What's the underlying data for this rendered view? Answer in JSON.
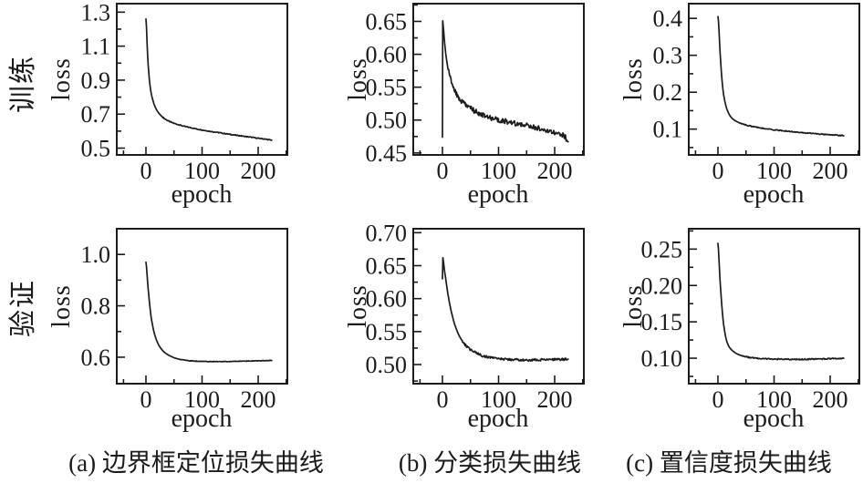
{
  "figure": {
    "row_labels": [
      {
        "label": "训练"
      },
      {
        "label": "验证"
      }
    ],
    "ylabel": "loss",
    "xlabel": "epoch",
    "captions": [
      "(a) 边界框定位损失曲线",
      "(b) 分类损失曲线",
      "(c) 置信度损失曲线"
    ],
    "line_color": "#1c1c1c",
    "background": "#ffffff"
  },
  "chart_data": [
    {
      "type": "line",
      "row": 0,
      "col": 0,
      "row_label": "训练",
      "caption": "(a) 边界框定位损失曲线",
      "xlabel": "epoch",
      "ylabel": "loss",
      "xlim": [
        -52,
        252
      ],
      "x_ticks": [
        0,
        100,
        200
      ],
      "x_tick_labels": [
        "0",
        "100",
        "200"
      ],
      "x_minor": [
        -40,
        50,
        150,
        250
      ],
      "ylim": [
        0.46,
        1.35
      ],
      "y_ticks": [
        0.5,
        0.7,
        0.9,
        1.1,
        1.3
      ],
      "y_tick_labels": [
        "0.5",
        "0.7",
        "0.9",
        "1.1",
        "1.3"
      ],
      "y_minor": [
        0.6,
        0.8,
        1.0,
        1.2
      ],
      "noise_amp": 0.0025,
      "noise_start": 30,
      "points": [
        [
          0,
          1.26
        ],
        [
          1,
          1.21
        ],
        [
          2,
          1.12
        ],
        [
          3,
          1.05
        ],
        [
          4,
          0.99
        ],
        [
          5,
          0.945
        ],
        [
          6,
          0.905
        ],
        [
          7,
          0.875
        ],
        [
          8,
          0.85
        ],
        [
          10,
          0.812
        ],
        [
          12,
          0.785
        ],
        [
          14,
          0.763
        ],
        [
          16,
          0.745
        ],
        [
          18,
          0.731
        ],
        [
          20,
          0.719
        ],
        [
          23,
          0.705
        ],
        [
          26,
          0.694
        ],
        [
          30,
          0.681
        ],
        [
          35,
          0.669
        ],
        [
          40,
          0.66
        ],
        [
          45,
          0.652
        ],
        [
          50,
          0.646
        ],
        [
          60,
          0.636
        ],
        [
          70,
          0.627
        ],
        [
          80,
          0.62
        ],
        [
          90,
          0.613
        ],
        [
          100,
          0.607
        ],
        [
          110,
          0.601
        ],
        [
          120,
          0.596
        ],
        [
          130,
          0.591
        ],
        [
          140,
          0.586
        ],
        [
          150,
          0.581
        ],
        [
          160,
          0.576
        ],
        [
          170,
          0.572
        ],
        [
          180,
          0.567
        ],
        [
          190,
          0.563
        ],
        [
          200,
          0.558
        ],
        [
          210,
          0.554
        ],
        [
          220,
          0.549
        ],
        [
          224,
          0.547
        ]
      ]
    },
    {
      "type": "line",
      "row": 0,
      "col": 1,
      "row_label": "训练",
      "caption": "(b) 分类损失曲线",
      "xlabel": "epoch",
      "ylabel": "loss",
      "xlim": [
        -52,
        252
      ],
      "x_ticks": [
        0,
        100,
        200
      ],
      "x_tick_labels": [
        "0",
        "100",
        "200"
      ],
      "x_minor": [
        -40,
        50,
        150,
        250
      ],
      "ylim": [
        0.447,
        0.677
      ],
      "y_ticks": [
        0.45,
        0.5,
        0.55,
        0.6,
        0.65
      ],
      "y_tick_labels": [
        "0.45",
        "0.50",
        "0.55",
        "0.60",
        "0.65"
      ],
      "y_minor": [
        0.475,
        0.525,
        0.575,
        0.625,
        0.675
      ],
      "noise_amp": 0.004,
      "noise_start": 10,
      "points": [
        [
          0,
          0.474
        ],
        [
          0.5,
          0.651
        ],
        [
          2,
          0.638
        ],
        [
          3,
          0.627
        ],
        [
          4,
          0.617
        ],
        [
          5,
          0.608
        ],
        [
          6,
          0.6
        ],
        [
          7,
          0.594
        ],
        [
          8,
          0.588
        ],
        [
          9,
          0.583
        ],
        [
          10,
          0.578
        ],
        [
          12,
          0.57
        ],
        [
          14,
          0.563
        ],
        [
          16,
          0.557
        ],
        [
          18,
          0.552
        ],
        [
          20,
          0.548
        ],
        [
          23,
          0.543
        ],
        [
          26,
          0.538
        ],
        [
          30,
          0.533
        ],
        [
          34,
          0.529
        ],
        [
          38,
          0.5255
        ],
        [
          42,
          0.5225
        ],
        [
          46,
          0.52
        ],
        [
          50,
          0.5175
        ],
        [
          55,
          0.515
        ],
        [
          60,
          0.5125
        ],
        [
          65,
          0.5105
        ],
        [
          70,
          0.5085
        ],
        [
          75,
          0.507
        ],
        [
          80,
          0.5055
        ],
        [
          85,
          0.504
        ],
        [
          90,
          0.5025
        ],
        [
          95,
          0.5015
        ],
        [
          100,
          0.5
        ],
        [
          110,
          0.4985
        ],
        [
          120,
          0.4965
        ],
        [
          130,
          0.495
        ],
        [
          140,
          0.4935
        ],
        [
          150,
          0.4915
        ],
        [
          160,
          0.49
        ],
        [
          170,
          0.488
        ],
        [
          180,
          0.486
        ],
        [
          190,
          0.4835
        ],
        [
          200,
          0.4815
        ],
        [
          210,
          0.479
        ],
        [
          218,
          0.4755
        ],
        [
          224,
          0.467
        ]
      ]
    },
    {
      "type": "line",
      "row": 0,
      "col": 2,
      "row_label": "训练",
      "caption": "(c) 置信度损失曲线",
      "xlabel": "epoch",
      "ylabel": "loss",
      "xlim": [
        -52,
        252
      ],
      "x_ticks": [
        0,
        100,
        200
      ],
      "x_tick_labels": [
        "0",
        "100",
        "200"
      ],
      "x_minor": [
        -40,
        50,
        150,
        250
      ],
      "ylim": [
        0.03,
        0.44
      ],
      "y_ticks": [
        0.1,
        0.2,
        0.3,
        0.4
      ],
      "y_tick_labels": [
        "0.1",
        "0.2",
        "0.3",
        "0.4"
      ],
      "y_minor": [
        0.05,
        0.15,
        0.25,
        0.35
      ],
      "noise_amp": 0.0012,
      "noise_start": 40,
      "points": [
        [
          0,
          0.405
        ],
        [
          1,
          0.392
        ],
        [
          2,
          0.365
        ],
        [
          3,
          0.335
        ],
        [
          4,
          0.305
        ],
        [
          5,
          0.278
        ],
        [
          6,
          0.256
        ],
        [
          7,
          0.237
        ],
        [
          8,
          0.221
        ],
        [
          9,
          0.207
        ],
        [
          10,
          0.195
        ],
        [
          11,
          0.185
        ],
        [
          12,
          0.177
        ],
        [
          14,
          0.164
        ],
        [
          16,
          0.154
        ],
        [
          18,
          0.146
        ],
        [
          20,
          0.14
        ],
        [
          23,
          0.133
        ],
        [
          26,
          0.128
        ],
        [
          30,
          0.1235
        ],
        [
          34,
          0.12
        ],
        [
          38,
          0.117
        ],
        [
          42,
          0.1145
        ],
        [
          46,
          0.1125
        ],
        [
          50,
          0.111
        ],
        [
          60,
          0.1075
        ],
        [
          70,
          0.1045
        ],
        [
          80,
          0.102
        ],
        [
          90,
          0.1
        ],
        [
          100,
          0.098
        ],
        [
          110,
          0.0965
        ],
        [
          120,
          0.095
        ],
        [
          130,
          0.0935
        ],
        [
          140,
          0.092
        ],
        [
          150,
          0.0905
        ],
        [
          160,
          0.089
        ],
        [
          170,
          0.0878
        ],
        [
          180,
          0.0866
        ],
        [
          190,
          0.0855
        ],
        [
          200,
          0.0845
        ],
        [
          210,
          0.0835
        ],
        [
          220,
          0.0826
        ],
        [
          224,
          0.0822
        ]
      ]
    },
    {
      "type": "line",
      "row": 1,
      "col": 0,
      "row_label": "验证",
      "caption": "(a) 边界框定位损失曲线",
      "xlabel": "epoch",
      "ylabel": "loss",
      "xlim": [
        -52,
        252
      ],
      "x_ticks": [
        0,
        100,
        200
      ],
      "x_tick_labels": [
        "0",
        "100",
        "200"
      ],
      "x_minor": [
        -40,
        50,
        150,
        250
      ],
      "ylim": [
        0.497,
        1.1
      ],
      "y_ticks": [
        0.6,
        0.8,
        1.0
      ],
      "y_tick_labels": [
        "0.6",
        "0.8",
        "1.0"
      ],
      "y_minor": [
        0.5,
        0.7,
        0.9,
        1.1
      ],
      "noise_amp": 0.001,
      "noise_start": 60,
      "points": [
        [
          0,
          0.97
        ],
        [
          1,
          0.952
        ],
        [
          2,
          0.922
        ],
        [
          3,
          0.893
        ],
        [
          4,
          0.866
        ],
        [
          5,
          0.841
        ],
        [
          6,
          0.818
        ],
        [
          7,
          0.797
        ],
        [
          8,
          0.778
        ],
        [
          9,
          0.761
        ],
        [
          10,
          0.746
        ],
        [
          12,
          0.721
        ],
        [
          14,
          0.701
        ],
        [
          16,
          0.685
        ],
        [
          18,
          0.671
        ],
        [
          20,
          0.66
        ],
        [
          23,
          0.646
        ],
        [
          26,
          0.636
        ],
        [
          30,
          0.625
        ],
        [
          34,
          0.617
        ],
        [
          38,
          0.611
        ],
        [
          42,
          0.606
        ],
        [
          46,
          0.602
        ],
        [
          50,
          0.598
        ],
        [
          55,
          0.5945
        ],
        [
          60,
          0.5915
        ],
        [
          70,
          0.588
        ],
        [
          80,
          0.5858
        ],
        [
          90,
          0.5845
        ],
        [
          100,
          0.5838
        ],
        [
          110,
          0.5833
        ],
        [
          120,
          0.583
        ],
        [
          130,
          0.583
        ],
        [
          140,
          0.5832
        ],
        [
          150,
          0.5835
        ],
        [
          160,
          0.584
        ],
        [
          170,
          0.5845
        ],
        [
          180,
          0.585
        ],
        [
          190,
          0.5855
        ],
        [
          200,
          0.586
        ],
        [
          210,
          0.5865
        ],
        [
          220,
          0.587
        ],
        [
          224,
          0.5872
        ]
      ]
    },
    {
      "type": "line",
      "row": 1,
      "col": 1,
      "row_label": "验证",
      "caption": "(b) 分类损失曲线",
      "xlabel": "epoch",
      "ylabel": "loss",
      "xlim": [
        -52,
        252
      ],
      "x_ticks": [
        0,
        100,
        200
      ],
      "x_tick_labels": [
        "0",
        "100",
        "200"
      ],
      "x_minor": [
        -40,
        50,
        150,
        250
      ],
      "ylim": [
        0.471,
        0.706
      ],
      "y_ticks": [
        0.5,
        0.55,
        0.6,
        0.65,
        0.7
      ],
      "y_tick_labels": [
        "0.50",
        "0.55",
        "0.60",
        "0.65",
        "0.70"
      ],
      "y_minor": [
        0.475,
        0.525,
        0.575,
        0.625,
        0.675
      ],
      "noise_amp": 0.0018,
      "noise_start": 35,
      "points": [
        [
          0,
          0.63
        ],
        [
          0.8,
          0.662
        ],
        [
          2,
          0.655
        ],
        [
          3,
          0.648
        ],
        [
          4,
          0.641
        ],
        [
          5,
          0.635
        ],
        [
          6,
          0.629
        ],
        [
          7,
          0.623
        ],
        [
          8,
          0.617
        ],
        [
          9,
          0.6115
        ],
        [
          10,
          0.606
        ],
        [
          12,
          0.596
        ],
        [
          14,
          0.5875
        ],
        [
          16,
          0.5795
        ],
        [
          18,
          0.5725
        ],
        [
          20,
          0.566
        ],
        [
          22,
          0.5605
        ],
        [
          24,
          0.5555
        ],
        [
          26,
          0.551
        ],
        [
          28,
          0.547
        ],
        [
          30,
          0.5435
        ],
        [
          33,
          0.539
        ],
        [
          36,
          0.535
        ],
        [
          39,
          0.5315
        ],
        [
          42,
          0.5285
        ],
        [
          45,
          0.526
        ],
        [
          48,
          0.524
        ],
        [
          52,
          0.5215
        ],
        [
          56,
          0.5195
        ],
        [
          60,
          0.5175
        ],
        [
          65,
          0.5155
        ],
        [
          70,
          0.514
        ],
        [
          75,
          0.5125
        ],
        [
          80,
          0.5115
        ],
        [
          85,
          0.5105
        ],
        [
          90,
          0.51
        ],
        [
          100,
          0.509
        ],
        [
          110,
          0.5082
        ],
        [
          120,
          0.5076
        ],
        [
          130,
          0.5072
        ],
        [
          140,
          0.507
        ],
        [
          150,
          0.5068
        ],
        [
          160,
          0.5068
        ],
        [
          170,
          0.507
        ],
        [
          180,
          0.5071
        ],
        [
          190,
          0.5073
        ],
        [
          200,
          0.5075
        ],
        [
          210,
          0.5078
        ],
        [
          220,
          0.508
        ],
        [
          224,
          0.5081
        ]
      ]
    },
    {
      "type": "line",
      "row": 1,
      "col": 2,
      "row_label": "验证",
      "caption": "(c) 置信度损失曲线",
      "xlabel": "epoch",
      "ylabel": "loss",
      "xlim": [
        -52,
        252
      ],
      "x_ticks": [
        0,
        100,
        200
      ],
      "x_tick_labels": [
        "0",
        "100",
        "200"
      ],
      "x_minor": [
        -40,
        50,
        150,
        250
      ],
      "ylim": [
        0.065,
        0.278
      ],
      "y_ticks": [
        0.1,
        0.15,
        0.2,
        0.25
      ],
      "y_tick_labels": [
        "0.10",
        "0.15",
        "0.20",
        "0.25"
      ],
      "y_minor": [
        0.075,
        0.125,
        0.175,
        0.225,
        0.275
      ],
      "noise_amp": 0.0008,
      "noise_start": 40,
      "points": [
        [
          0,
          0.258
        ],
        [
          1,
          0.249
        ],
        [
          2,
          0.234
        ],
        [
          3,
          0.219
        ],
        [
          4,
          0.205
        ],
        [
          5,
          0.1925
        ],
        [
          6,
          0.1815
        ],
        [
          7,
          0.1715
        ],
        [
          8,
          0.1625
        ],
        [
          9,
          0.1545
        ],
        [
          10,
          0.1475
        ],
        [
          11,
          0.1415
        ],
        [
          12,
          0.1365
        ],
        [
          14,
          0.1285
        ],
        [
          16,
          0.1225
        ],
        [
          18,
          0.1185
        ],
        [
          20,
          0.1155
        ],
        [
          23,
          0.1125
        ],
        [
          26,
          0.1102
        ],
        [
          30,
          0.1078
        ],
        [
          34,
          0.106
        ],
        [
          38,
          0.1046
        ],
        [
          42,
          0.1035
        ],
        [
          46,
          0.1026
        ],
        [
          50,
          0.1019
        ],
        [
          55,
          0.1012
        ],
        [
          60,
          0.1007
        ],
        [
          70,
          0.1
        ],
        [
          80,
          0.0995
        ],
        [
          90,
          0.0991
        ],
        [
          100,
          0.0988
        ],
        [
          110,
          0.0986
        ],
        [
          120,
          0.0985
        ],
        [
          130,
          0.0984
        ],
        [
          140,
          0.0984
        ],
        [
          150,
          0.0985
        ],
        [
          160,
          0.0986
        ],
        [
          170,
          0.0988
        ],
        [
          180,
          0.099
        ],
        [
          190,
          0.0992
        ],
        [
          200,
          0.0994
        ],
        [
          210,
          0.0996
        ],
        [
          220,
          0.0998
        ],
        [
          224,
          0.0999
        ]
      ]
    }
  ]
}
